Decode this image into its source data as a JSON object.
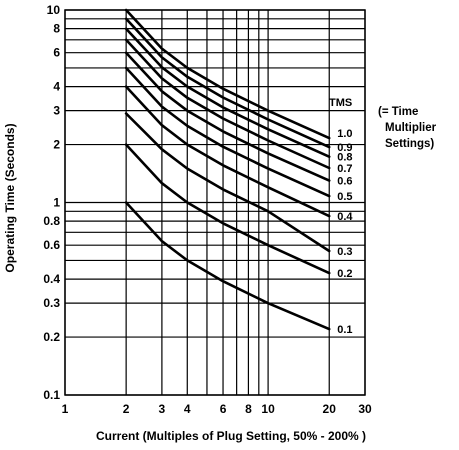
{
  "chart_data": {
    "type": "line",
    "xscale": "log",
    "yscale": "log",
    "xlim": [
      1,
      30
    ],
    "ylim": [
      0.1,
      10
    ],
    "grid": true,
    "xlabel": "Current (Multiples of Plug Setting, 50%  - 200% )",
    "ylabel": "Operating Time (Seconds)",
    "x_ticks": [
      1,
      2,
      3,
      4,
      5,
      6,
      7,
      8,
      9,
      10,
      20,
      30
    ],
    "x_tick_labels": [
      "1",
      "2",
      "3",
      "4",
      "6",
      "8",
      "10",
      "20",
      "30"
    ],
    "x_tick_label_values": [
      1,
      2,
      3,
      4,
      6,
      8,
      10,
      20,
      30
    ],
    "y_ticks": [
      0.1,
      0.2,
      0.3,
      0.4,
      0.5,
      0.6,
      0.7,
      0.8,
      0.9,
      1,
      2,
      3,
      4,
      5,
      6,
      7,
      8,
      9,
      10
    ],
    "y_tick_labels": [
      "0.1",
      "0.2",
      "0.3",
      "0.4",
      "0.6",
      "0.8",
      "1",
      "2",
      "3",
      "4",
      "6",
      "8",
      "10"
    ],
    "y_tick_label_values": [
      0.1,
      0.2,
      0.3,
      0.4,
      0.6,
      0.8,
      1,
      2,
      3,
      4,
      6,
      8,
      10
    ],
    "legend_title": "TMS",
    "legend_note": [
      "(= Time",
      "Multiplier",
      "Settings)"
    ],
    "x": [
      2,
      3,
      4,
      6,
      10,
      20
    ],
    "series": [
      {
        "name": "0.1",
        "values": [
          1.0,
          0.63,
          0.5,
          0.39,
          0.3,
          0.22
        ]
      },
      {
        "name": "0.2",
        "values": [
          2.0,
          1.26,
          1.0,
          0.78,
          0.6,
          0.43
        ]
      },
      {
        "name": "0.3",
        "values": [
          2.9,
          1.89,
          1.5,
          1.17,
          0.9,
          0.56
        ]
      },
      {
        "name": "0.4",
        "values": [
          4.0,
          2.52,
          2.0,
          1.56,
          1.2,
          0.85
        ]
      },
      {
        "name": "0.5",
        "values": [
          5.0,
          3.15,
          2.5,
          1.95,
          1.5,
          1.08
        ]
      },
      {
        "name": "0.6",
        "values": [
          6.0,
          3.78,
          3.0,
          2.34,
          1.8,
          1.3
        ]
      },
      {
        "name": "0.7",
        "values": [
          7.0,
          4.41,
          3.5,
          2.73,
          2.1,
          1.51
        ]
      },
      {
        "name": "0.8",
        "values": [
          8.0,
          5.04,
          4.0,
          3.12,
          2.4,
          1.73
        ]
      },
      {
        "name": "0.9",
        "values": [
          9.0,
          5.67,
          4.5,
          3.51,
          2.7,
          1.94
        ]
      },
      {
        "name": "1.0",
        "values": [
          10.0,
          6.3,
          5.0,
          3.9,
          3.0,
          2.16
        ]
      }
    ],
    "series_label_values": [
      0.22,
      0.43,
      0.56,
      0.85,
      1.08,
      1.3,
      1.51,
      1.73,
      1.94,
      2.3
    ]
  }
}
